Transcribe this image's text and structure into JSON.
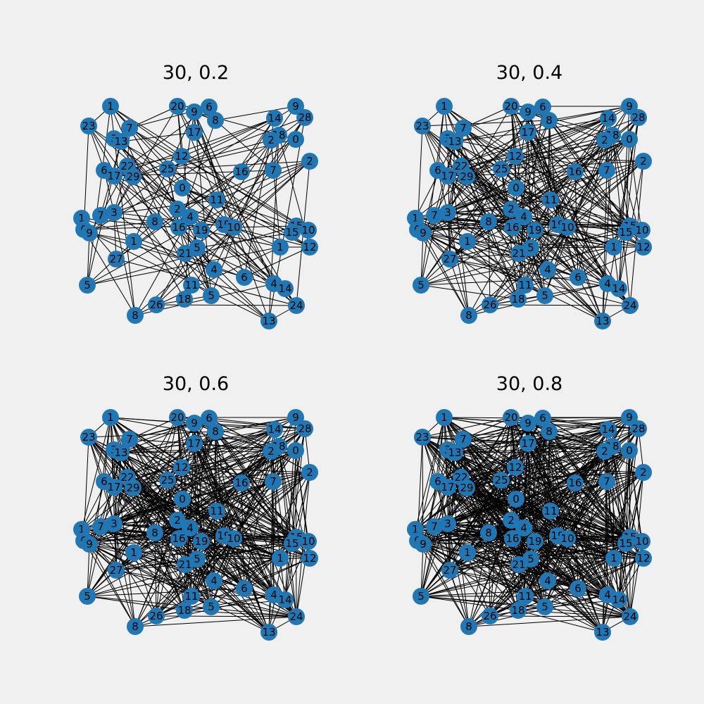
{
  "figure": {
    "background": "#f0f0f0",
    "node_color": "#1f77b4",
    "edge_color": "#000000"
  },
  "node_labels": [
    "1",
    "1",
    "20",
    "9",
    "6",
    "9",
    "28",
    "8",
    "14",
    "23",
    "7",
    "17",
    "18",
    "0",
    "3",
    "13",
    "2",
    "2",
    "12",
    "6",
    "22",
    "25",
    "16",
    "7",
    "17",
    "29",
    "0",
    "11",
    "1",
    "7",
    "3",
    "0",
    "9",
    "8",
    "2",
    "4",
    "16",
    "19",
    "19",
    "10",
    "15",
    "10",
    "1",
    "15",
    "12",
    "21",
    "5",
    "27",
    "4",
    "6",
    "5",
    "4",
    "14",
    "11",
    "18",
    "5",
    "26",
    "24",
    "13",
    "8"
  ],
  "panels": [
    {
      "title": "30, 0.2",
      "edge_probability": 0.2,
      "node_count": 30
    },
    {
      "title": "30, 0.4",
      "edge_probability": 0.4,
      "node_count": 30
    },
    {
      "title": "30, 0.6",
      "edge_probability": 0.6,
      "node_count": 30
    },
    {
      "title": "30, 0.8",
      "edge_probability": 0.8,
      "node_count": 30
    }
  ]
}
